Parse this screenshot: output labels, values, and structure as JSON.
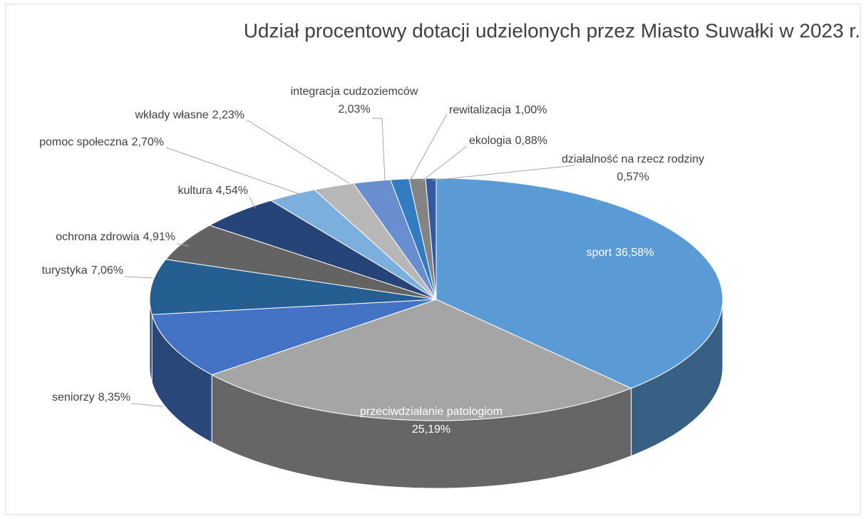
{
  "chart_data": {
    "type": "pie",
    "title": "Udział procentowy dotacji udzielonych przez Miasto Suwałki w 2023 r.",
    "categories": [
      "sport",
      "przeciwdziałanie patologiom",
      "seniorzy",
      "turystyka",
      "ochrona zdrowia",
      "kultura",
      "pomoc społeczna",
      "wkłady własne",
      "integracja cudzoziemców",
      "rewitalizacja",
      "ekologia",
      "działalność na rzecz rodziny"
    ],
    "values": [
      36.58,
      25.19,
      8.35,
      7.06,
      4.91,
      4.54,
      2.7,
      2.23,
      2.03,
      1.0,
      0.88,
      0.57
    ],
    "value_labels": [
      "36,58%",
      "25,19%",
      "8,35%",
      "7,06%",
      "4,91%",
      "4,54%",
      "2,70%",
      "2,23%",
      "2,03%",
      "1,00%",
      "0,88%",
      "0,57%"
    ],
    "colors": [
      "#5b9bd5",
      "#a5a5a5",
      "#4472c4",
      "#255e91",
      "#636363",
      "#264478",
      "#7cafdd",
      "#b7b7b7",
      "#698ed0",
      "#327dc2",
      "#848484",
      "#335aa1"
    ]
  }
}
